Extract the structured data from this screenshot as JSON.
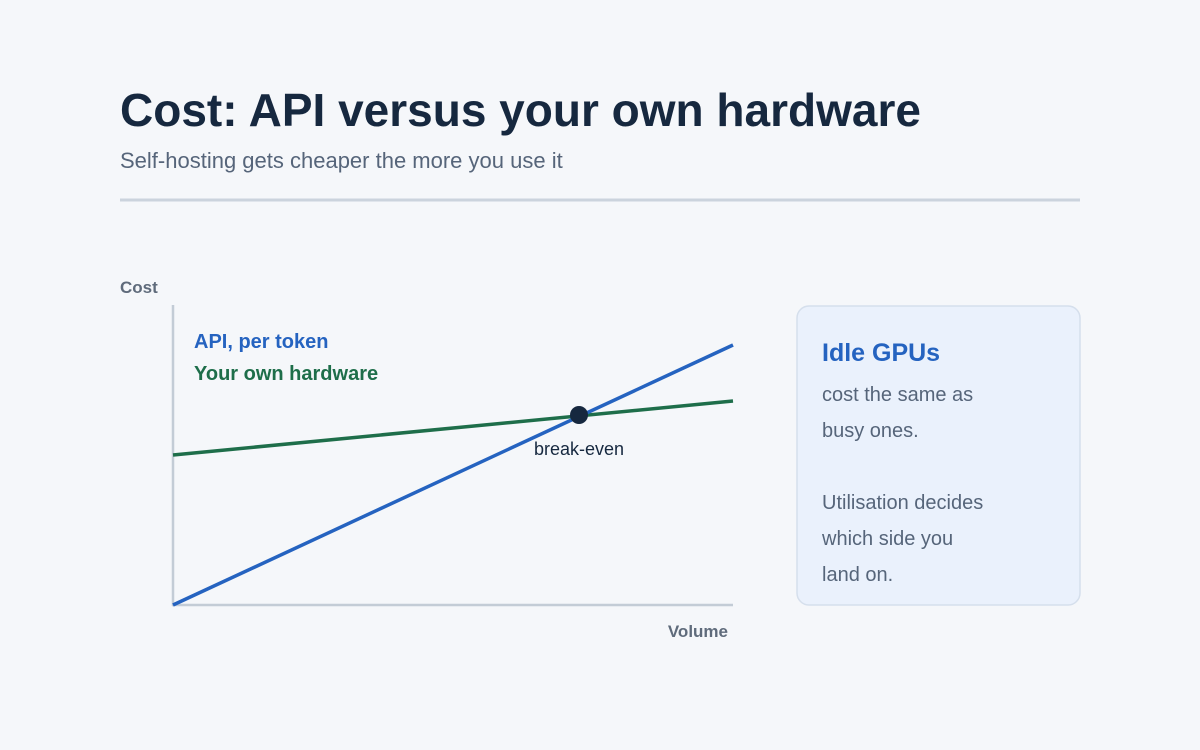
{
  "header": {
    "title": "Cost: API versus your own hardware",
    "subtitle": "Self-hosting gets cheaper the more you use it"
  },
  "chart": {
    "y_axis_label": "Cost",
    "x_axis_label": "Volume",
    "legend": [
      "API, per token",
      "Your own hardware"
    ],
    "annotation": "break-even"
  },
  "card": {
    "title": "Idle GPUs",
    "paragraphs": [
      [
        "cost the same as",
        "busy ones."
      ],
      [
        "Utilisation decides",
        "which side you",
        "land on."
      ]
    ]
  }
}
